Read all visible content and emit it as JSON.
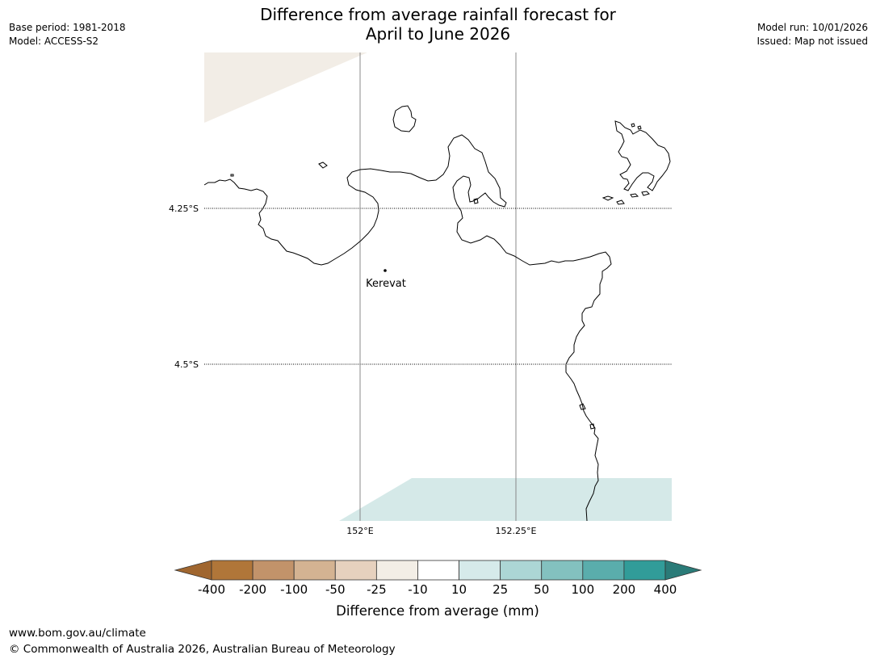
{
  "title": {
    "line1": "Difference from average rainfall forecast for",
    "line2": "April to June 2026"
  },
  "meta_left": {
    "base_period": "Base period: 1981-2018",
    "model": "Model: ACCESS-S2"
  },
  "meta_right": {
    "model_run": "Model run: 10/01/2026",
    "issued": "Issued: Map not issued"
  },
  "map": {
    "lat_labels": [
      "4.25°S",
      "4.5°S"
    ],
    "lon_labels": [
      "152°E",
      "152.25°E"
    ],
    "place_label": "Kerevat",
    "colors": {
      "coast": "#000000",
      "dry_shading": "#f2ede6",
      "wet_shading": "#d5e9e8",
      "gridline": "#888888"
    }
  },
  "legend": {
    "title": "Difference from average (mm)",
    "tick_labels": [
      "-400",
      "-200",
      "-100",
      "-50",
      "-25",
      "-10",
      "10",
      "25",
      "50",
      "100",
      "200",
      "400"
    ],
    "colors": [
      "#a0662f",
      "#b07639",
      "#c2936a",
      "#d4b392",
      "#e6d1be",
      "#f3eee6",
      "#ffffff",
      "#d6eaea",
      "#acd6d5",
      "#83c1bf",
      "#5aadac",
      "#319c99",
      "#2a7b78"
    ]
  },
  "footer": {
    "url": "www.bom.gov.au/climate",
    "copyright": "© Commonwealth of Australia 2026, Australian Bureau of Meteorology"
  }
}
